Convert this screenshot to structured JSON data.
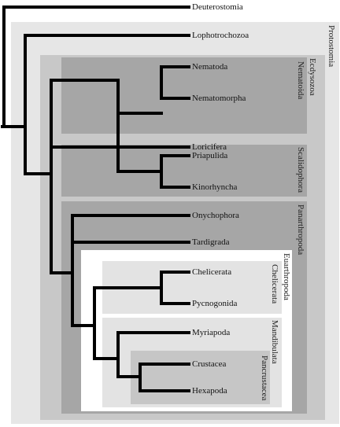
{
  "clades": {
    "protostomia": "Protostomia",
    "ecdysozoa": "Ecdysozoa",
    "nematoida": "Nematoida",
    "scalidophora": "Scalidophora",
    "panarthropoda": "Panarthropoda",
    "euarthropoda": "Euarthropoda",
    "chelicerata": "Chelicerata",
    "mandibulata": "Mandibulata",
    "pancrustacea": "Pancrustacea"
  },
  "taxa": {
    "deuterostomia": "Deuterostomia",
    "lophotrochozoa": "Lophotrochozoa",
    "nematoda": "Nematoda",
    "nematomorpha": "Nematomorpha",
    "loricifera": "Loricifera",
    "priapulida": "Priapulida",
    "kinorhyncha": "Kinorhyncha",
    "onychophora": "Onychophora",
    "tardigrada": "Tardigrada",
    "chelicerata": "Chelicerata",
    "pycnogonida": "Pycnogonida",
    "myriapoda": "Myriapoda",
    "crustacea": "Crustacea",
    "hexapoda": "Hexapoda"
  },
  "colors": {
    "protostomia_bg": "#e6e6e6",
    "ecdysozoa_bg": "#c8c8c8",
    "group_bg": "#a6a6a6",
    "euarthropoda_bg": "#ffffff",
    "subgroup_bg": "#e3e3e3",
    "pancrustacea_bg": "#c6c6c6",
    "branch": "#000000"
  }
}
